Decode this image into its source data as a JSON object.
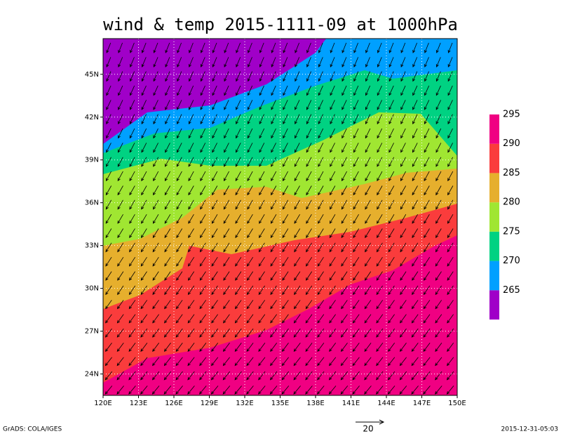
{
  "title": "wind & temp 2015-1111-09 at 1000hPa",
  "map": {
    "xlim": [
      120,
      150
    ],
    "ylim": [
      22.5,
      47.5
    ],
    "xticks": [
      {
        "value": 120,
        "label": "120E"
      },
      {
        "value": 123,
        "label": "123E"
      },
      {
        "value": 126,
        "label": "126E"
      },
      {
        "value": 129,
        "label": "129E"
      },
      {
        "value": 132,
        "label": "132E"
      },
      {
        "value": 135,
        "label": "135E"
      },
      {
        "value": 138,
        "label": "138E"
      },
      {
        "value": 141,
        "label": "141E"
      },
      {
        "value": 144,
        "label": "144E"
      },
      {
        "value": 147,
        "label": "147E"
      },
      {
        "value": 150,
        "label": "150E"
      }
    ],
    "yticks": [
      {
        "value": 24,
        "label": "24N"
      },
      {
        "value": 27,
        "label": "27N"
      },
      {
        "value": 30,
        "label": "30N"
      },
      {
        "value": 33,
        "label": "33N"
      },
      {
        "value": 36,
        "label": "36N"
      },
      {
        "value": 39,
        "label": "39N"
      },
      {
        "value": 42,
        "label": "42N"
      },
      {
        "value": 45,
        "label": "45N"
      }
    ]
  },
  "colorbar": {
    "levels": [
      265,
      270,
      275,
      280,
      285,
      290,
      295
    ],
    "colors": [
      "#a000c8",
      "#00a0ff",
      "#00d282",
      "#a0e632",
      "#e6af2d",
      "#fa3c3c",
      "#f00082"
    ]
  },
  "vector_reference": {
    "label": "20"
  },
  "footer": {
    "left": "GrADS: COLA/IGES",
    "right": "2015-12-31-05:03"
  }
}
